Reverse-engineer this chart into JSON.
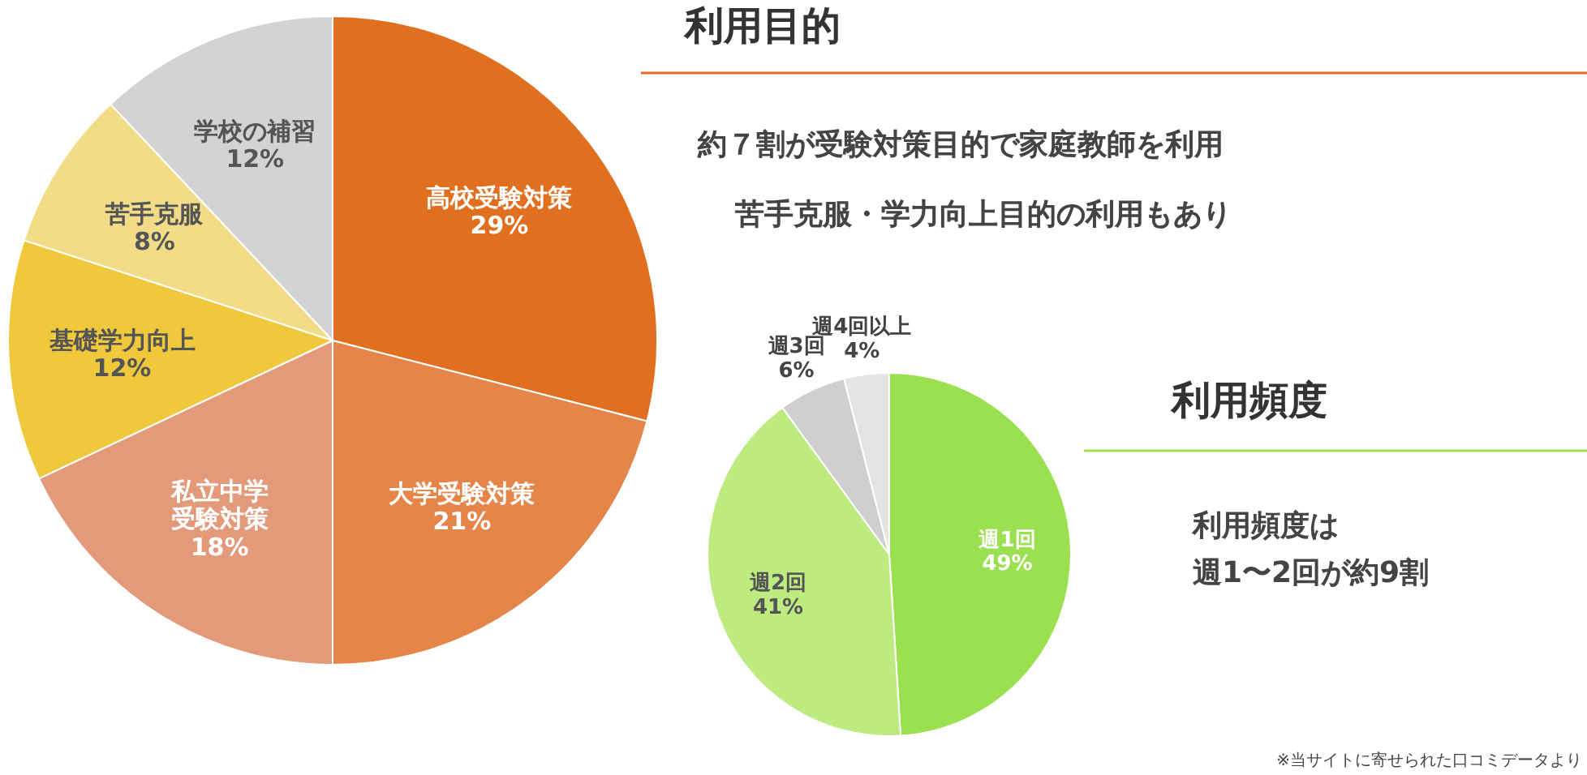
{
  "chart_data": [
    {
      "type": "pie",
      "title": "利用目的",
      "categories": [
        "高校受験対策",
        "大学受験対策",
        "私立中学受験対策",
        "基礎学力向上",
        "苦手克服",
        "学校の補習"
      ],
      "values": [
        29,
        21,
        18,
        12,
        8,
        12
      ],
      "value_labels": [
        "29%",
        "21%",
        "18%",
        "12%",
        "8%",
        "12%"
      ],
      "colors": [
        "#e07020",
        "#e5854a",
        "#e29a7a",
        "#f0c83c",
        "#f2dc88",
        "#d3d3d3"
      ],
      "annotations": [
        "約７割が受験対策目的で家庭教師を利用",
        "苦手克服・学力向上目的の利用もあり"
      ]
    },
    {
      "type": "pie",
      "title": "利用頻度",
      "categories": [
        "週1回",
        "週2回",
        "週3回",
        "週4回以上"
      ],
      "values": [
        49,
        41,
        6,
        4
      ],
      "value_labels": [
        "49%",
        "41%",
        "6%",
        "4%"
      ],
      "colors": [
        "#9be050",
        "#bdeb80",
        "#cfcfcf",
        "#e4e4e4"
      ],
      "annotations": [
        "利用頻度は週1〜2回が約9割",
        "※当サイトに寄せられた口コミデータより"
      ]
    }
  ]
}
